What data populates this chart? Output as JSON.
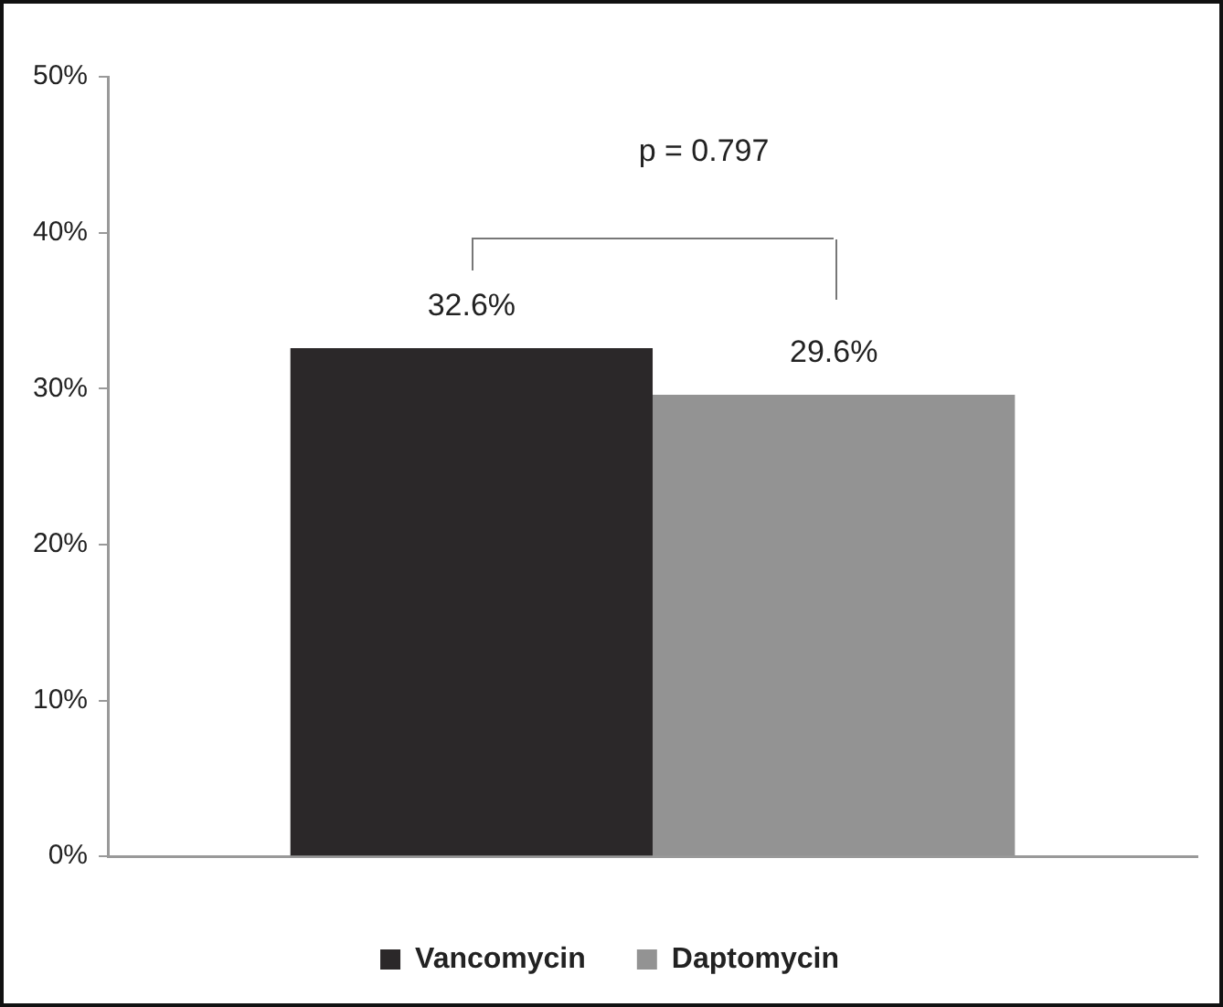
{
  "chart_data": {
    "type": "bar",
    "categories": [
      null
    ],
    "series": [
      {
        "name": "Vancomycin",
        "color": "#2b2829",
        "values": [
          32.6
        ],
        "value_labels": [
          "32.6%"
        ]
      },
      {
        "name": "Daptomycin",
        "color": "#939393",
        "values": [
          29.6
        ],
        "value_labels": [
          "29.6%"
        ]
      }
    ],
    "ylim": [
      0,
      50
    ],
    "yticks": [
      {
        "value": 0,
        "label": "0%"
      },
      {
        "value": 10,
        "label": "10%"
      },
      {
        "value": 20,
        "label": "20%"
      },
      {
        "value": 30,
        "label": "30%"
      },
      {
        "value": 40,
        "label": "40%"
      },
      {
        "value": 50,
        "label": "50%"
      }
    ],
    "annotations": [
      "p = 0.797"
    ],
    "grid": false,
    "legend": "bottom"
  }
}
